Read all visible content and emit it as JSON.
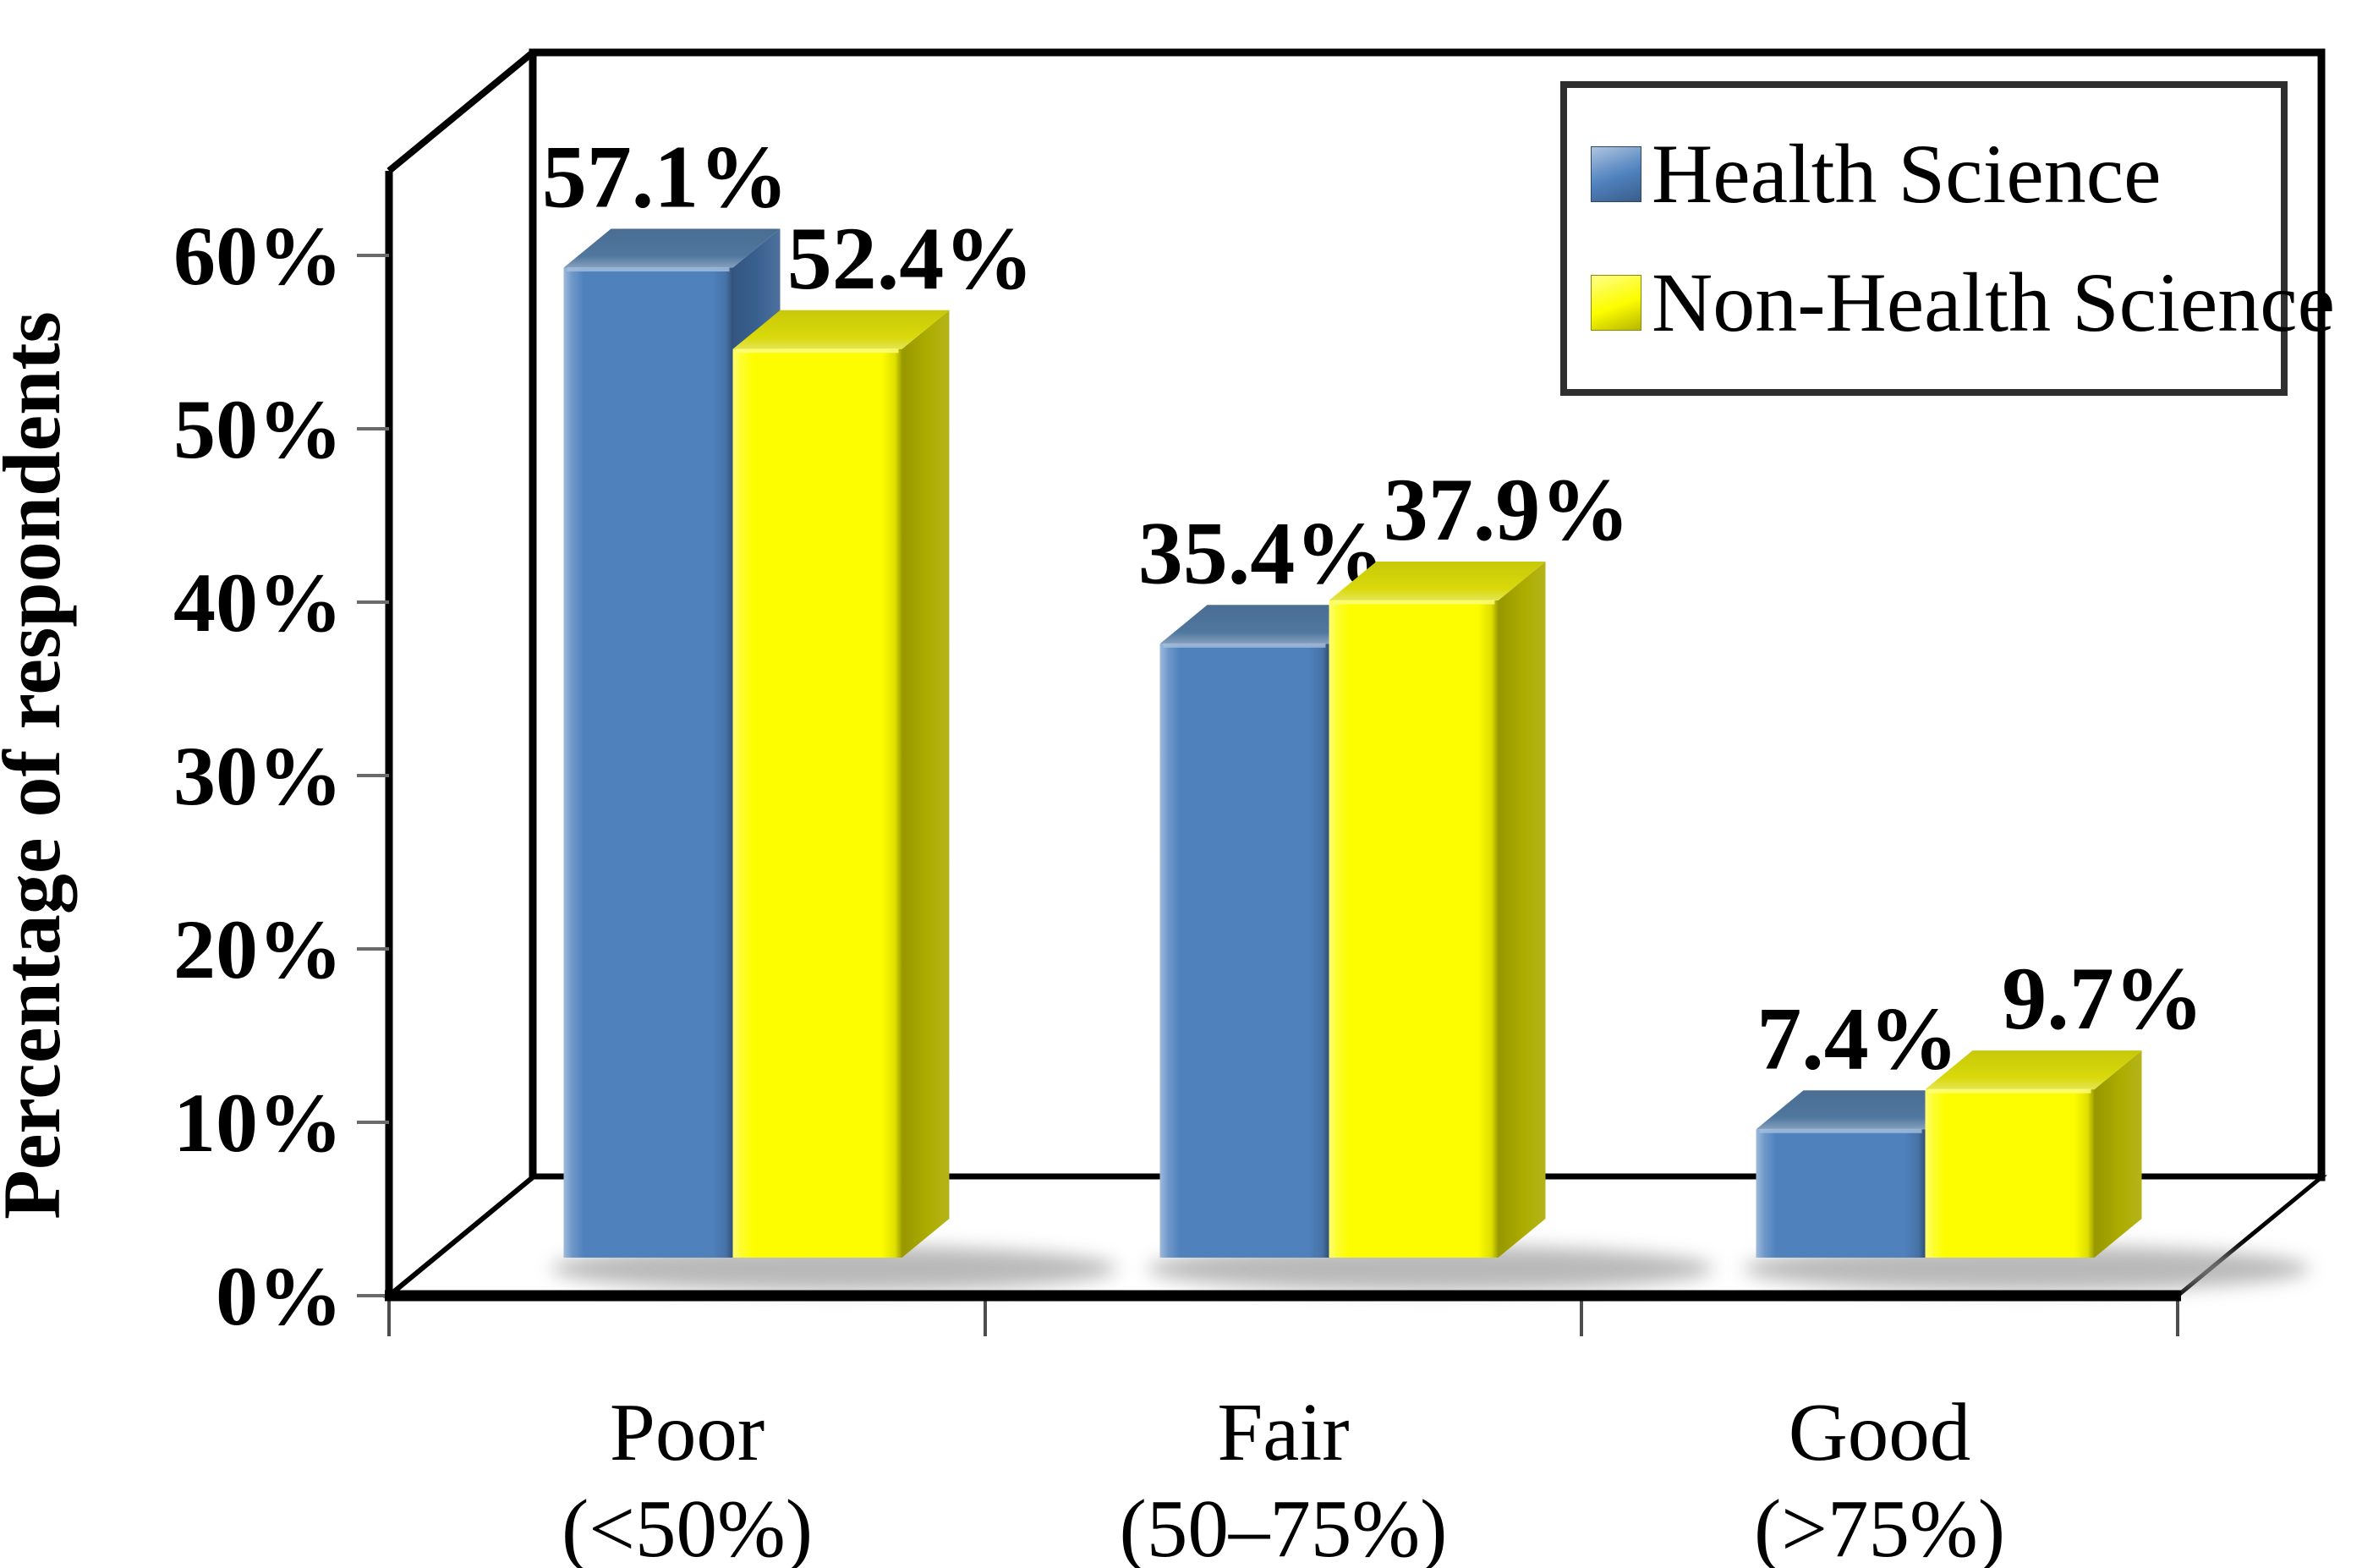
{
  "chart_data": {
    "type": "bar",
    "variant": "3d-clustered-column",
    "title": "",
    "xlabel": "",
    "ylabel": "Percentage of respondents",
    "ylim": [
      0,
      60
    ],
    "ytick_step": 10,
    "ytick_labels": [
      "0%",
      "10%",
      "20%",
      "30%",
      "40%",
      "50%",
      "60%"
    ],
    "grid": false,
    "legend_position": "top-right",
    "data_labels_shown": true,
    "categories": [
      {
        "label": "Poor",
        "sublabel": "(<50%)"
      },
      {
        "label": "Fair",
        "sublabel": "(50–75%)"
      },
      {
        "label": "Good",
        "sublabel": "(>75%)"
      }
    ],
    "series": [
      {
        "name": "Health Science",
        "color": "#4f81bd",
        "top_color": "#50779f",
        "side_color": "#3a6191",
        "values": [
          57.1,
          35.4,
          7.4
        ],
        "data_labels": [
          "57.1%",
          "35.4%",
          "7.4%"
        ]
      },
      {
        "name": "Non-Health Science",
        "color": "#fdfd00",
        "top_color": "#d9d90b",
        "side_color": "#acac00",
        "values": [
          52.4,
          37.9,
          9.7
        ],
        "data_labels": [
          "52.4%",
          "37.9%",
          "9.7%"
        ]
      }
    ]
  },
  "frame_color": "#000000",
  "tick_color": "#6a6a6a",
  "shadow_color": "#9b9b9b"
}
